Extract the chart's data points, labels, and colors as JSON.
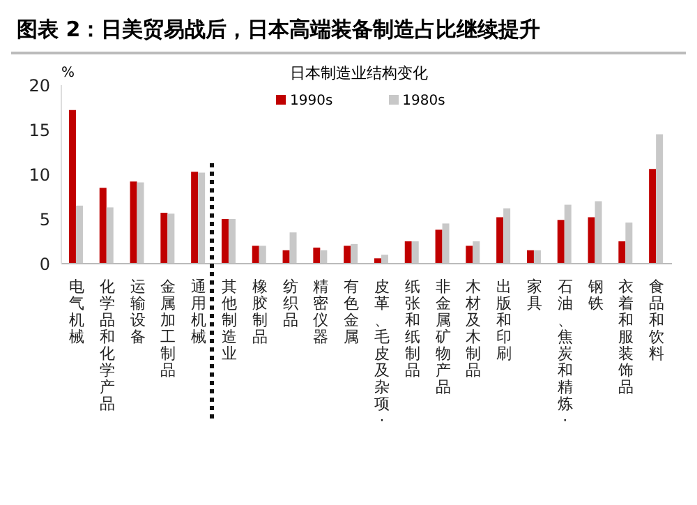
{
  "chart_data": {
    "type": "bar",
    "title": "图表 2：日美贸易战后，日本高端装备制造占比继续提升",
    "subtitle": "日本制造业结构变化",
    "ylabel": "%",
    "categories": [
      "电气机械",
      "化学品和化学产品",
      "运输设备",
      "金属加工制品",
      "通用机械",
      "其他制造业",
      "橡胶制品",
      "纺织品",
      "精密仪器",
      "有色金属",
      "皮革、毛皮及杂项·",
      "纸张和纸制品",
      "非金属矿物产品",
      "木材及木制品",
      "出版和印刷",
      "家具",
      "石油、焦炭和精炼·",
      "钢铁",
      "衣着和服装饰品",
      "食品和饮料"
    ],
    "series": [
      {
        "name": "1990s",
        "color": "#c00000",
        "values": [
          17.2,
          8.5,
          9.2,
          5.7,
          10.3,
          5.0,
          2.0,
          1.5,
          1.8,
          2.0,
          0.6,
          2.5,
          3.8,
          2.0,
          5.2,
          1.5,
          4.9,
          5.2,
          2.5,
          10.6
        ]
      },
      {
        "name": "1980s",
        "color": "#c8c8c8",
        "values": [
          6.5,
          6.3,
          9.1,
          5.6,
          10.2,
          5.0,
          2.0,
          3.5,
          1.5,
          2.2,
          1.0,
          2.5,
          4.5,
          2.5,
          6.2,
          1.5,
          6.6,
          7.0,
          4.6,
          14.5
        ]
      }
    ],
    "ylim": [
      0,
      20
    ],
    "yticks": [
      0,
      5,
      10,
      15,
      20
    ],
    "legend": "top"
  }
}
